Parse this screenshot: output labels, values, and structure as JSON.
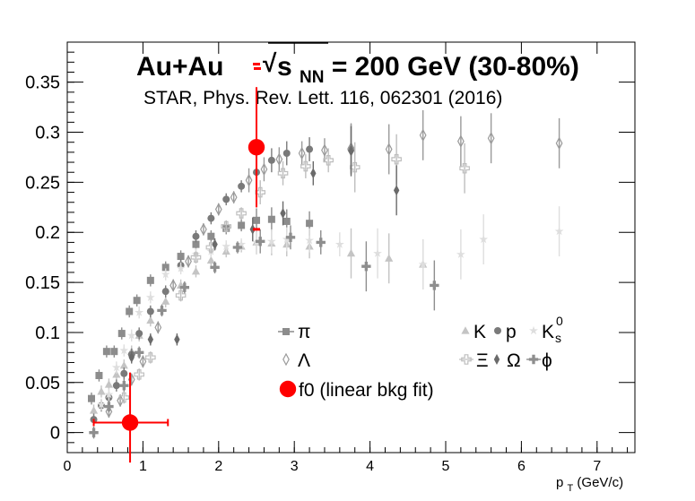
{
  "chart_data": {
    "type": "scatter",
    "title": {
      "lead": "Au+Au",
      "sqrt_sign": "√",
      "s": "s",
      "sub": "NN",
      "tail": " = 200 GeV (30-80%)"
    },
    "subtitle": "STAR, Phys. Rev. Lett. 116, 062301 (2016)",
    "xlabel": {
      "main": "p",
      "sub": "T",
      "unit": " (GeV/c)"
    },
    "ylabel": "",
    "xlim": [
      0,
      7.5
    ],
    "ylim": [
      -0.02,
      0.39
    ],
    "xticks": [
      "0",
      "1",
      "2",
      "3",
      "4",
      "5",
      "6",
      "7"
    ],
    "yticks": [
      "0",
      "0.05",
      "0.1",
      "0.15",
      "0.2",
      "0.25",
      "0.3",
      "0.35"
    ],
    "grid": false,
    "legend_position": "bottom-right inside plot",
    "legend": {
      "pi": "π",
      "K": "K",
      "p": "p",
      "k0_main": "K",
      "k0_sup": "0",
      "k0_sub": "s",
      "lambda": "Λ",
      "xi": "Ξ",
      "omega": "Ω",
      "phi": "ϕ",
      "f0": "f0 (linear bkg fit)"
    },
    "colors": {
      "pi": "#8c8c8c",
      "K": "#c4c4c4",
      "p": "#7a7a7a",
      "k0s": "#dedede",
      "lambda": "#9a9a9a",
      "xi": "#bebebe",
      "omega": "#6a6a6a",
      "phi": "#8e8e8e",
      "f0": "#ff0000"
    },
    "series": [
      {
        "name": "π",
        "marker": "square",
        "color": "#8c8c8c",
        "points": [
          [
            0.32,
            0.034
          ],
          [
            0.42,
            0.057
          ],
          [
            0.52,
            0.081
          ],
          [
            0.62,
            0.081
          ],
          [
            0.72,
            0.099
          ],
          [
            0.82,
            0.121
          ],
          [
            0.92,
            0.132
          ],
          [
            1.1,
            0.152
          ],
          [
            1.3,
            0.165
          ],
          [
            1.5,
            0.176
          ],
          [
            1.7,
            0.188
          ],
          [
            1.9,
            0.196
          ],
          [
            2.1,
            0.204
          ],
          [
            2.3,
            0.207
          ],
          [
            2.5,
            0.212
          ],
          [
            2.7,
            0.213
          ],
          [
            2.9,
            0.211
          ],
          [
            3.2,
            0.209
          ]
        ]
      },
      {
        "name": "K",
        "marker": "triangle",
        "color": "#c4c4c4",
        "points": [
          [
            0.35,
            0.022
          ],
          [
            0.45,
            0.041
          ],
          [
            0.55,
            0.048
          ],
          [
            0.65,
            0.058
          ],
          [
            0.75,
            0.067
          ],
          [
            0.85,
            0.081
          ],
          [
            0.95,
            0.097
          ],
          [
            1.1,
            0.112
          ],
          [
            1.3,
            0.131
          ],
          [
            1.5,
            0.147
          ],
          [
            1.7,
            0.161
          ],
          [
            1.9,
            0.172
          ],
          [
            2.1,
            0.181
          ],
          [
            2.3,
            0.186
          ],
          [
            2.5,
            0.19
          ],
          [
            2.7,
            0.189
          ],
          [
            2.9,
            0.188
          ],
          [
            3.2,
            0.186
          ],
          [
            3.75,
            0.179
          ],
          [
            4.25,
            0.174
          ],
          [
            4.7,
            0.168
          ]
        ]
      },
      {
        "name": "p",
        "marker": "circle",
        "color": "#7a7a7a",
        "points": [
          [
            0.35,
            0.013
          ],
          [
            0.45,
            0.027
          ],
          [
            0.55,
            0.035
          ],
          [
            0.65,
            0.047
          ],
          [
            0.75,
            0.059
          ],
          [
            0.85,
            0.078
          ],
          [
            0.95,
            0.099
          ],
          [
            1.1,
            0.121
          ],
          [
            1.3,
            0.141
          ],
          [
            1.5,
            0.167
          ],
          [
            1.7,
            0.196
          ],
          [
            1.9,
            0.214
          ],
          [
            2.1,
            0.233
          ],
          [
            2.3,
            0.246
          ],
          [
            2.5,
            0.26
          ],
          [
            2.7,
            0.272
          ],
          [
            2.9,
            0.279
          ],
          [
            3.2,
            0.283
          ],
          [
            3.75,
            0.283
          ]
        ]
      },
      {
        "name": "K0s",
        "marker": "star",
        "color": "#dedede",
        "points": [
          [
            0.45,
            0.028
          ],
          [
            0.55,
            0.038
          ],
          [
            0.65,
            0.065
          ],
          [
            0.75,
            0.082
          ],
          [
            0.85,
            0.097
          ],
          [
            0.95,
            0.12
          ],
          [
            1.1,
            0.135
          ],
          [
            1.3,
            0.158
          ],
          [
            1.5,
            0.164
          ],
          [
            1.7,
            0.178
          ],
          [
            1.9,
            0.181
          ],
          [
            2.1,
            0.186
          ],
          [
            2.3,
            0.188
          ],
          [
            2.5,
            0.19
          ],
          [
            2.7,
            0.191
          ],
          [
            2.9,
            0.193
          ],
          [
            3.2,
            0.192
          ],
          [
            3.6,
            0.188
          ],
          [
            4.1,
            0.179
          ],
          [
            4.7,
            0.168
          ],
          [
            5.2,
            0.178
          ],
          [
            5.5,
            0.193
          ],
          [
            6.5,
            0.201
          ]
        ]
      },
      {
        "name": "Λ",
        "marker": "open-diamond",
        "color": "#9a9a9a",
        "points": [
          [
            0.55,
            0.021
          ],
          [
            0.7,
            0.032
          ],
          [
            0.85,
            0.053
          ],
          [
            1.0,
            0.071
          ],
          [
            1.2,
            0.105
          ],
          [
            1.4,
            0.147
          ],
          [
            1.6,
            0.171
          ],
          [
            1.8,
            0.203
          ],
          [
            2.0,
            0.223
          ],
          [
            2.2,
            0.235
          ],
          [
            2.4,
            0.252
          ],
          [
            2.6,
            0.263
          ],
          [
            2.8,
            0.273
          ],
          [
            3.1,
            0.279
          ],
          [
            3.4,
            0.282
          ],
          [
            3.75,
            0.284
          ],
          [
            4.25,
            0.283
          ],
          [
            4.7,
            0.297
          ],
          [
            5.2,
            0.291
          ],
          [
            5.6,
            0.294
          ],
          [
            6.5,
            0.289
          ]
        ]
      },
      {
        "name": "Ξ",
        "marker": "open-cross",
        "color": "#bebebe",
        "points": [
          [
            0.75,
            0.035
          ],
          [
            0.95,
            0.058
          ],
          [
            1.1,
            0.075
          ],
          [
            1.5,
            0.137
          ],
          [
            1.7,
            0.175
          ],
          [
            1.9,
            0.185
          ],
          [
            2.1,
            0.206
          ],
          [
            2.3,
            0.219
          ],
          [
            2.55,
            0.24
          ],
          [
            2.85,
            0.259
          ],
          [
            3.15,
            0.266
          ],
          [
            3.45,
            0.272
          ],
          [
            3.8,
            0.265
          ],
          [
            4.35,
            0.273
          ],
          [
            5.25,
            0.264
          ]
        ]
      },
      {
        "name": "Ω",
        "marker": "diamond",
        "color": "#6a6a6a",
        "points": [
          [
            0.85,
            0.075
          ],
          [
            1.1,
            0.093
          ],
          [
            1.45,
            0.093
          ],
          [
            1.95,
            0.188
          ],
          [
            2.45,
            0.203
          ],
          [
            2.85,
            0.219
          ],
          [
            3.25,
            0.259
          ],
          [
            3.75,
            0.281
          ],
          [
            4.35,
            0.242
          ]
        ]
      },
      {
        "name": "ϕ",
        "marker": "cross",
        "color": "#8e8e8e",
        "points": [
          [
            0.35,
            0.0
          ],
          [
            0.55,
            0.026
          ],
          [
            0.75,
            0.047
          ],
          [
            0.95,
            0.08
          ],
          [
            1.25,
            0.122
          ],
          [
            1.55,
            0.145
          ],
          [
            1.95,
            0.165
          ],
          [
            2.25,
            0.185
          ],
          [
            2.55,
            0.191
          ],
          [
            2.95,
            0.195
          ],
          [
            3.35,
            0.19
          ],
          [
            3.95,
            0.166
          ],
          [
            4.85,
            0.147
          ]
        ]
      },
      {
        "name": "f0 (linear bkg fit)",
        "marker": "big-circle",
        "color": "#ff0000",
        "points": [
          [
            0.83,
            0.01
          ],
          [
            2.5,
            0.285
          ]
        ]
      }
    ]
  }
}
